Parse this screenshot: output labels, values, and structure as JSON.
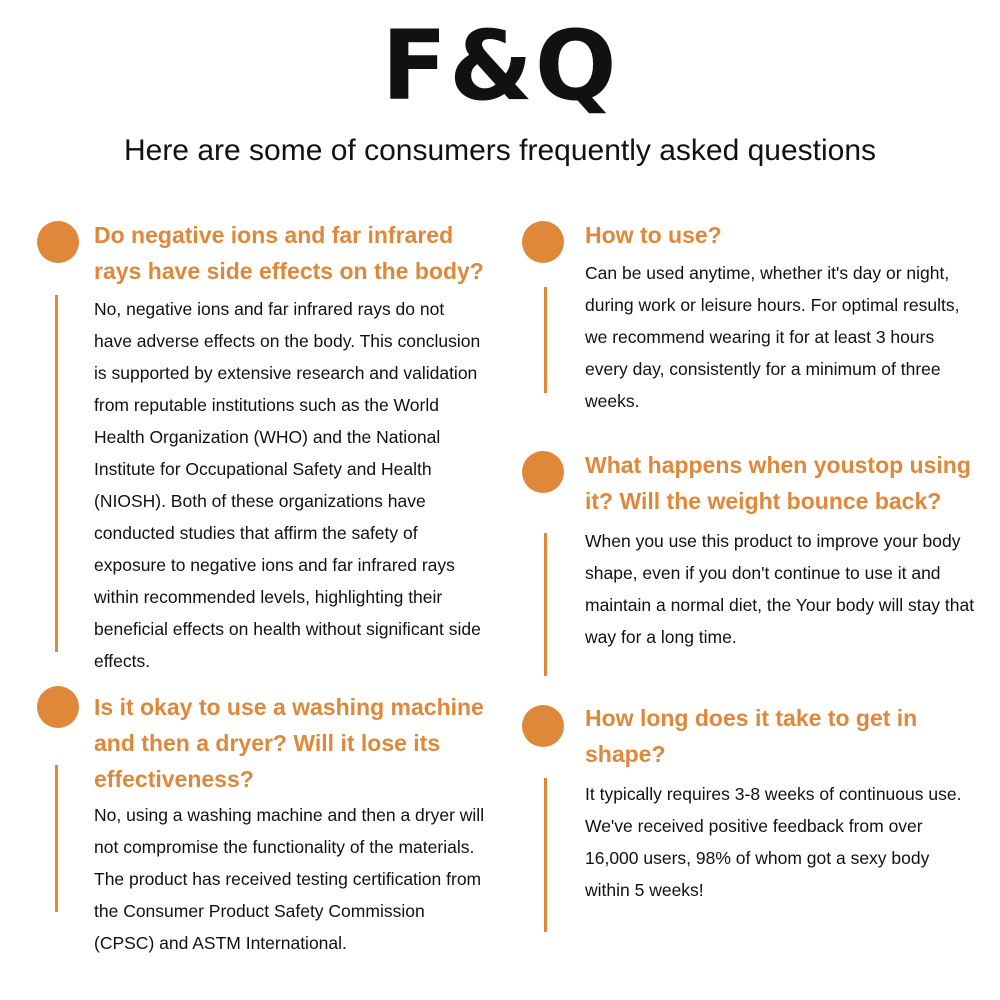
{
  "header": {
    "title": "F&Q",
    "subtitle": "Here are some of consumers frequently asked questions"
  },
  "accent_color": "#E0883A",
  "faqs": [
    {
      "question": "Do negative ions and far infrared rays have side effects on the body?",
      "answer": "No, negative ions and far infrared rays do not have adverse effects on the body. This conclusion is supported by extensive research and validation from reputable institutions such as the World Health Organization (WHO) and the National Institute for Occupational Safety and Health (NIOSH). Both of these organizations have conducted studies that affirm the safety of exposure to negative ions and far infrared rays within recommended levels, highlighting their beneficial effects on health without significant side effects."
    },
    {
      "question": "Is it okay to use a washing machine and then a dryer? Will it lose its effectiveness?",
      "answer": "No, using a washing machine and then a dryer will not compromise the functionality of the materials. The product has received testing certification from the Consumer Product Safety Commission (CPSC) and ASTM International."
    },
    {
      "question": "How to use?",
      "answer": "Can be used anytime, whether it's day or night, during work or leisure hours. For optimal results, we recommend wearing it for at least 3 hours every day, consistently for a minimum of three weeks."
    },
    {
      "question": "What happens when youstop using it?  Will the weight bounce back?",
      "answer": "When you use this product to improve your body shape, even if you don't continue to use it and maintain a normal diet, the Your body will stay that way for a long time."
    },
    {
      "question": "How long does it take to get in shape?",
      "answer": "It typically requires 3-8 weeks of continuous use. We've received positive feedback from over 16,000 users, 98% of whom got a sexy body within 5 weeks!"
    }
  ]
}
